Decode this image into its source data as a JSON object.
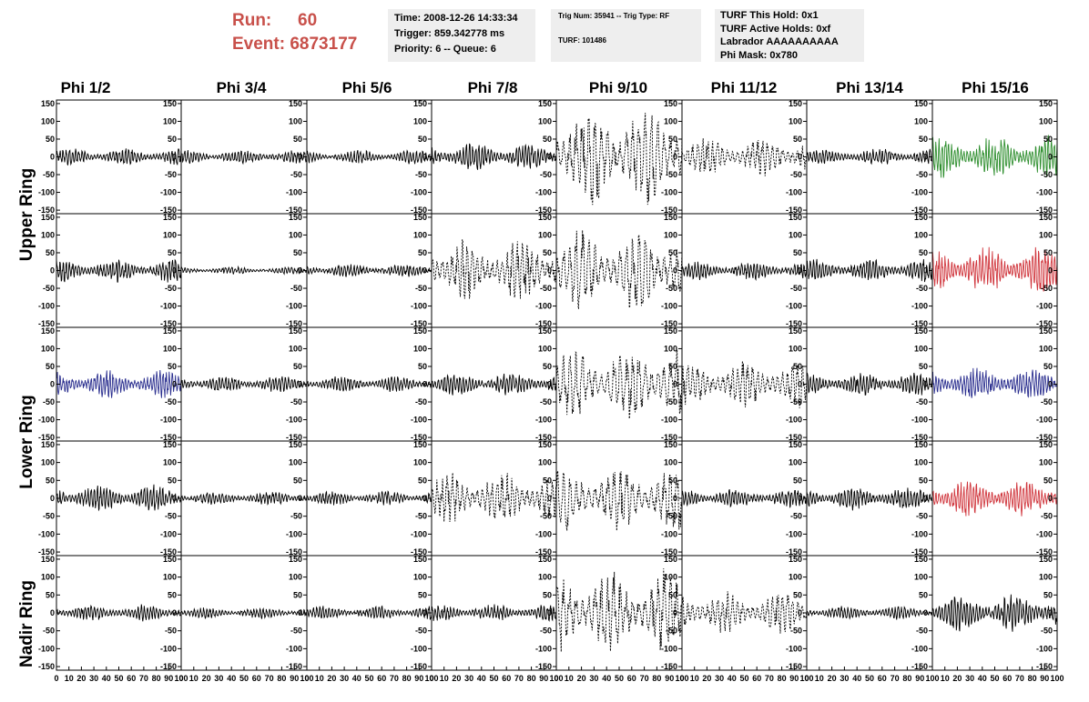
{
  "header": {
    "run_label": "Run:",
    "run_value": "60",
    "event_label": "Event:",
    "event_value": "6873177"
  },
  "info_box_1": {
    "time": "Time: 2008-12-26 14:33:34",
    "trigger": "Trigger: 859.342778 ms",
    "priority": "Priority: 6 -- Queue: 6"
  },
  "info_box_2": {
    "trig": "Trig Num: 35941 -- Trig Type: RF",
    "turf": "TURF: 101486"
  },
  "info_box_3": {
    "hold": "TURF This Hold: 0x1",
    "active": "TURF Active Holds: 0xf",
    "labrador": "Labrador AAAAAAAAAA",
    "phimask": "Phi Mask: 0x780"
  },
  "columns": [
    "Phi 1/2",
    "Phi 3/4",
    "Phi 5/6",
    "Phi 7/8",
    "Phi 9/10",
    "Phi 11/12",
    "Phi 13/14",
    "Phi 15/16"
  ],
  "ring_labels": {
    "upper": "Upper Ring",
    "lower": "Lower Ring",
    "nadir": "Nadir Ring"
  },
  "colors": {
    "black": "#000000",
    "green": "#2f8f2f",
    "red": "#d0353c",
    "blue": "#2b2f8f",
    "run_text": "#c8504a",
    "box_bg": "#eeeeee"
  },
  "chart_data": {
    "type": "line",
    "xlim": [
      0,
      100
    ],
    "ylim": [
      -160,
      160
    ],
    "x_ticks": [
      0,
      10,
      20,
      30,
      40,
      50,
      60,
      70,
      80,
      90,
      100
    ],
    "x_tick_labels": [
      "0",
      "10",
      "20",
      "30",
      "40",
      "50",
      "60",
      "70",
      "80",
      "90",
      "100"
    ],
    "x_tick_labels_last_column": [
      "10",
      "20",
      "30",
      "40",
      "50",
      "60",
      "70",
      "80",
      "90",
      "100"
    ],
    "y_ticks": [
      150,
      100,
      50,
      0,
      -50,
      -100,
      -150
    ],
    "y_tick_labels": [
      "150",
      "100",
      "50",
      "0",
      "-50",
      "-100",
      "-150"
    ],
    "rows": 5,
    "cols": 8,
    "panels": [
      [
        {
          "style": "solid",
          "color": "black",
          "amp": 18,
          "period": 2.5
        },
        {
          "style": "solid",
          "color": "black",
          "amp": 15,
          "period": 2.5
        },
        {
          "style": "solid",
          "color": "black",
          "amp": 15,
          "period": 2.5
        },
        {
          "style": "solid",
          "color": "black",
          "amp": 30,
          "period": 2.5
        },
        {
          "style": "dashed",
          "color": "black",
          "amp": 110,
          "period": 5
        },
        {
          "style": "dashed",
          "color": "black",
          "amp": 40,
          "period": 4
        },
        {
          "style": "solid",
          "color": "black",
          "amp": 18,
          "period": 2.5
        },
        {
          "style": "solid",
          "color": "green",
          "amp": 45,
          "period": 2.5
        }
      ],
      [
        {
          "style": "solid",
          "color": "black",
          "amp": 25,
          "period": 2.5
        },
        {
          "style": "solid",
          "color": "black",
          "amp": 8,
          "period": 2.5
        },
        {
          "style": "solid",
          "color": "black",
          "amp": 15,
          "period": 2.5
        },
        {
          "style": "dashed",
          "color": "black",
          "amp": 65,
          "period": 4
        },
        {
          "style": "dashed",
          "color": "black",
          "amp": 90,
          "period": 5
        },
        {
          "style": "solid",
          "color": "black",
          "amp": 20,
          "period": 2.5
        },
        {
          "style": "solid",
          "color": "black",
          "amp": 25,
          "period": 2.5
        },
        {
          "style": "solid",
          "color": "red",
          "amp": 50,
          "period": 2.5
        }
      ],
      [
        {
          "style": "solid",
          "color": "blue",
          "amp": 30,
          "period": 2.5
        },
        {
          "style": "solid",
          "color": "black",
          "amp": 18,
          "period": 2.5
        },
        {
          "style": "solid",
          "color": "black",
          "amp": 18,
          "period": 2.5
        },
        {
          "style": "solid",
          "color": "black",
          "amp": 25,
          "period": 2.5
        },
        {
          "style": "dashed",
          "color": "black",
          "amp": 80,
          "period": 5
        },
        {
          "style": "dashed",
          "color": "black",
          "amp": 50,
          "period": 4
        },
        {
          "style": "solid",
          "color": "black",
          "amp": 25,
          "period": 2.5
        },
        {
          "style": "solid",
          "color": "blue",
          "amp": 35,
          "period": 2.5
        }
      ],
      [
        {
          "style": "solid",
          "color": "black",
          "amp": 28,
          "period": 2.5
        },
        {
          "style": "solid",
          "color": "black",
          "amp": 15,
          "period": 2.5
        },
        {
          "style": "solid",
          "color": "black",
          "amp": 15,
          "period": 2.5
        },
        {
          "style": "dashed",
          "color": "black",
          "amp": 55,
          "period": 4
        },
        {
          "style": "dashed",
          "color": "black",
          "amp": 70,
          "period": 5
        },
        {
          "style": "solid",
          "color": "black",
          "amp": 20,
          "period": 2.5
        },
        {
          "style": "solid",
          "color": "black",
          "amp": 25,
          "period": 2.5
        },
        {
          "style": "solid",
          "color": "red",
          "amp": 40,
          "period": 2.5
        }
      ],
      [
        {
          "style": "solid",
          "color": "black",
          "amp": 18,
          "period": 2.5
        },
        {
          "style": "solid",
          "color": "black",
          "amp": 12,
          "period": 2.5
        },
        {
          "style": "solid",
          "color": "black",
          "amp": 15,
          "period": 2.5
        },
        {
          "style": "solid",
          "color": "black",
          "amp": 18,
          "period": 2.5
        },
        {
          "style": "dashed",
          "color": "black",
          "amp": 90,
          "period": 5
        },
        {
          "style": "dashed",
          "color": "black",
          "amp": 45,
          "period": 4
        },
        {
          "style": "solid",
          "color": "black",
          "amp": 15,
          "period": 2.5
        },
        {
          "style": "solid",
          "color": "black",
          "amp": 40,
          "period": 2.5
        }
      ]
    ]
  }
}
